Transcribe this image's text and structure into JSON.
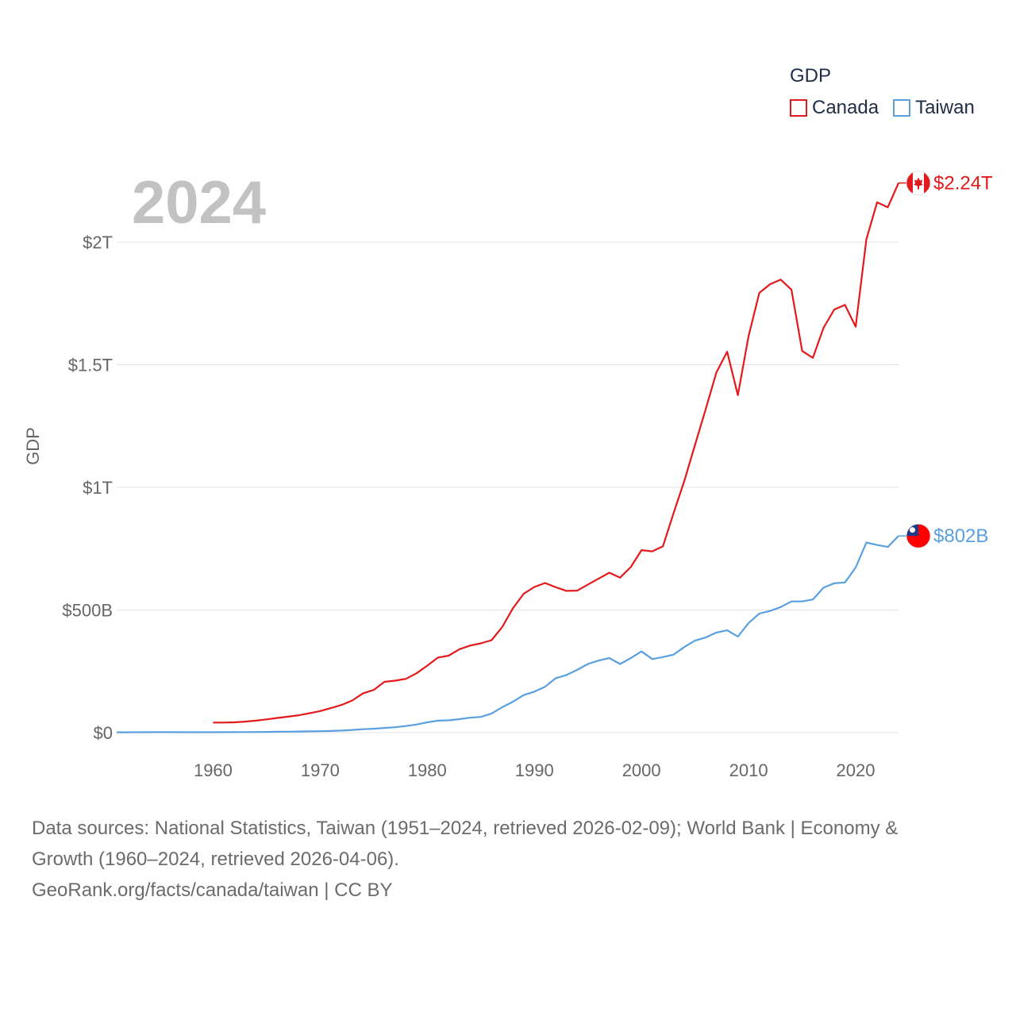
{
  "legend": {
    "title": "GDP",
    "items": [
      {
        "name": "Canada",
        "color": "#e31a1c"
      },
      {
        "name": "Taiwan",
        "color": "#5aa0e0"
      }
    ]
  },
  "year_label": "2024",
  "footer": {
    "line1": "Data sources: National Statistics, Taiwan (1951–2024, retrieved 2026-02-09); World Bank | Economy &",
    "line2": "Growth (1960–2024, retrieved 2026-04-06).",
    "line3": "GeoRank.org/facts/canada/taiwan | CC BY"
  },
  "chart_data": {
    "type": "line",
    "title": "",
    "xlabel": "",
    "ylabel": "GDP",
    "xlim": [
      1951,
      2024
    ],
    "ylim": [
      0,
      2250
    ],
    "value_unit": "billions USD",
    "x_ticks": [
      1960,
      1970,
      1980,
      1990,
      2000,
      2010,
      2020
    ],
    "y_ticks": [
      {
        "value": 0,
        "label": "$0"
      },
      {
        "value": 500,
        "label": "$500B"
      },
      {
        "value": 1000,
        "label": "$1T"
      },
      {
        "value": 1500,
        "label": "$1.5T"
      },
      {
        "value": 2000,
        "label": "$2T"
      }
    ],
    "series": [
      {
        "name": "Canada",
        "color": "#e31a1c",
        "end_label": "$2.24T",
        "flag": "canada-flag-icon",
        "points": [
          [
            1960,
            41
          ],
          [
            1961,
            41
          ],
          [
            1962,
            42
          ],
          [
            1963,
            45
          ],
          [
            1964,
            49
          ],
          [
            1965,
            54
          ],
          [
            1966,
            60
          ],
          [
            1967,
            65
          ],
          [
            1968,
            71
          ],
          [
            1969,
            79
          ],
          [
            1970,
            88
          ],
          [
            1971,
            100
          ],
          [
            1972,
            113
          ],
          [
            1973,
            131
          ],
          [
            1974,
            160
          ],
          [
            1975,
            174
          ],
          [
            1976,
            207
          ],
          [
            1977,
            212
          ],
          [
            1978,
            219
          ],
          [
            1979,
            242
          ],
          [
            1980,
            273
          ],
          [
            1981,
            306
          ],
          [
            1982,
            314
          ],
          [
            1983,
            340
          ],
          [
            1984,
            355
          ],
          [
            1985,
            364
          ],
          [
            1986,
            377
          ],
          [
            1987,
            431
          ],
          [
            1988,
            507
          ],
          [
            1989,
            566
          ],
          [
            1990,
            594
          ],
          [
            1991,
            610
          ],
          [
            1992,
            593
          ],
          [
            1993,
            578
          ],
          [
            1994,
            579
          ],
          [
            1995,
            604
          ],
          [
            1996,
            628
          ],
          [
            1997,
            652
          ],
          [
            1998,
            632
          ],
          [
            1999,
            675
          ],
          [
            2000,
            744
          ],
          [
            2001,
            739
          ],
          [
            2002,
            760
          ],
          [
            2003,
            895
          ],
          [
            2004,
            1026
          ],
          [
            2005,
            1173
          ],
          [
            2006,
            1319
          ],
          [
            2007,
            1469
          ],
          [
            2008,
            1553
          ],
          [
            2009,
            1376
          ],
          [
            2010,
            1617
          ],
          [
            2011,
            1793
          ],
          [
            2012,
            1828
          ],
          [
            2013,
            1847
          ],
          [
            2014,
            1806
          ],
          [
            2015,
            1556
          ],
          [
            2016,
            1528
          ],
          [
            2017,
            1650
          ],
          [
            2018,
            1725
          ],
          [
            2019,
            1744
          ],
          [
            2020,
            1655
          ],
          [
            2021,
            2011
          ],
          [
            2022,
            2162
          ],
          [
            2023,
            2142
          ],
          [
            2024,
            2241
          ]
        ]
      },
      {
        "name": "Taiwan",
        "color": "#5aa0e0",
        "end_label": "$802B",
        "flag": "taiwan-flag-icon",
        "points": [
          [
            1951,
            1.2
          ],
          [
            1955,
            1.9
          ],
          [
            1960,
            1.7
          ],
          [
            1961,
            1.8
          ],
          [
            1962,
            2.0
          ],
          [
            1963,
            2.2
          ],
          [
            1964,
            2.6
          ],
          [
            1965,
            3.0
          ],
          [
            1966,
            3.4
          ],
          [
            1967,
            3.9
          ],
          [
            1968,
            4.6
          ],
          [
            1969,
            5.3
          ],
          [
            1970,
            5.9
          ],
          [
            1971,
            6.9
          ],
          [
            1972,
            8.3
          ],
          [
            1973,
            11
          ],
          [
            1974,
            14
          ],
          [
            1975,
            16
          ],
          [
            1976,
            19
          ],
          [
            1977,
            22
          ],
          [
            1978,
            27
          ],
          [
            1979,
            33
          ],
          [
            1980,
            42
          ],
          [
            1981,
            49
          ],
          [
            1982,
            50
          ],
          [
            1983,
            55
          ],
          [
            1984,
            61
          ],
          [
            1985,
            64
          ],
          [
            1986,
            78
          ],
          [
            1987,
            104
          ],
          [
            1988,
            126
          ],
          [
            1989,
            153
          ],
          [
            1990,
            167
          ],
          [
            1991,
            187
          ],
          [
            1992,
            222
          ],
          [
            1993,
            235
          ],
          [
            1994,
            256
          ],
          [
            1995,
            280
          ],
          [
            1996,
            294
          ],
          [
            1997,
            304
          ],
          [
            1998,
            280
          ],
          [
            1999,
            304
          ],
          [
            2000,
            331
          ],
          [
            2001,
            300
          ],
          [
            2002,
            308
          ],
          [
            2003,
            318
          ],
          [
            2004,
            349
          ],
          [
            2005,
            375
          ],
          [
            2006,
            388
          ],
          [
            2007,
            408
          ],
          [
            2008,
            417
          ],
          [
            2009,
            392
          ],
          [
            2010,
            447
          ],
          [
            2011,
            485
          ],
          [
            2012,
            496
          ],
          [
            2013,
            512
          ],
          [
            2014,
            535
          ],
          [
            2015,
            535
          ],
          [
            2016,
            543
          ],
          [
            2017,
            591
          ],
          [
            2018,
            609
          ],
          [
            2019,
            612
          ],
          [
            2020,
            673
          ],
          [
            2021,
            775
          ],
          [
            2022,
            765
          ],
          [
            2023,
            757
          ],
          [
            2024,
            802
          ]
        ]
      }
    ]
  }
}
